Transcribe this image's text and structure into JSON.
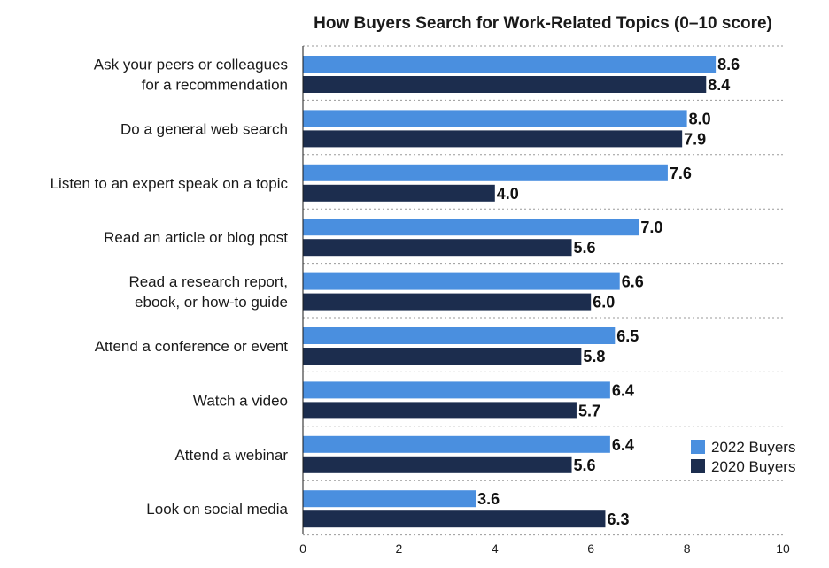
{
  "chart_data": {
    "type": "bar",
    "orientation": "horizontal",
    "title": "How Buyers Search for Work-Related Topics (0–10 score)",
    "xlabel": "",
    "ylabel": "",
    "xlim": [
      0,
      10
    ],
    "xticks": [
      "0",
      "2",
      "4",
      "6",
      "8",
      "10"
    ],
    "grid": "dotted separators between categories",
    "legend_position": "bottom-right",
    "categories": [
      [
        "Ask your peers or colleagues",
        "for a recommendation"
      ],
      [
        "Do a general web search"
      ],
      [
        "Listen to an expert speak on a topic"
      ],
      [
        "Read an article or blog post"
      ],
      [
        "Read a research report,",
        "ebook, or how-to guide"
      ],
      [
        "Attend a conference or event"
      ],
      [
        "Watch a video"
      ],
      [
        "Attend a webinar"
      ],
      [
        "Look on social media"
      ]
    ],
    "series": [
      {
        "name": "2022 Buyers",
        "color": "#4a8fdf",
        "values": [
          8.6,
          8.0,
          7.6,
          7.0,
          6.6,
          6.5,
          6.4,
          6.4,
          3.6
        ],
        "labels": [
          "8.6",
          "8.0",
          "7.6",
          "7.0",
          "6.6",
          "6.5",
          "6.4",
          "6.4",
          "3.6"
        ]
      },
      {
        "name": "2020 Buyers",
        "color": "#1c2d4e",
        "values": [
          8.4,
          7.9,
          4.0,
          5.6,
          6.0,
          5.8,
          5.7,
          5.6,
          6.3
        ],
        "labels": [
          "8.4",
          "7.9",
          "4.0",
          "5.6",
          "6.0",
          "5.8",
          "5.7",
          "5.6",
          "6.3"
        ]
      }
    ]
  }
}
